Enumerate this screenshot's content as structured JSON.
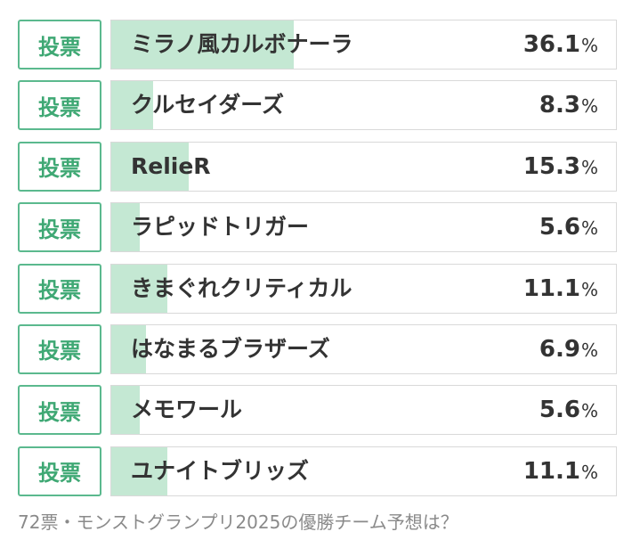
{
  "poll": {
    "vote_label": "投票",
    "percent_unit": "%",
    "options": [
      {
        "label": "ミラノ風カルボナーラ",
        "percent": "36.1",
        "value": 36.1
      },
      {
        "label": "クルセイダーズ",
        "percent": "8.3",
        "value": 8.3
      },
      {
        "label": "RelieR",
        "percent": "15.3",
        "value": 15.3
      },
      {
        "label": "ラピッドトリガー",
        "percent": "5.6",
        "value": 5.6
      },
      {
        "label": "きまぐれクリティカル",
        "percent": "11.1",
        "value": 11.1
      },
      {
        "label": "はなまるブラザーズ",
        "percent": "6.9",
        "value": 6.9
      },
      {
        "label": "メモワール",
        "percent": "5.6",
        "value": 5.6
      },
      {
        "label": "ユナイトブリッズ",
        "percent": "11.1",
        "value": 11.1
      }
    ],
    "footer": "72票・モンストグランプリ2025の優勝チーム予想は？"
  },
  "colors": {
    "accent": "#3fa874",
    "bar_fill": "#c4e8d3",
    "border": "#d9d9d9"
  }
}
